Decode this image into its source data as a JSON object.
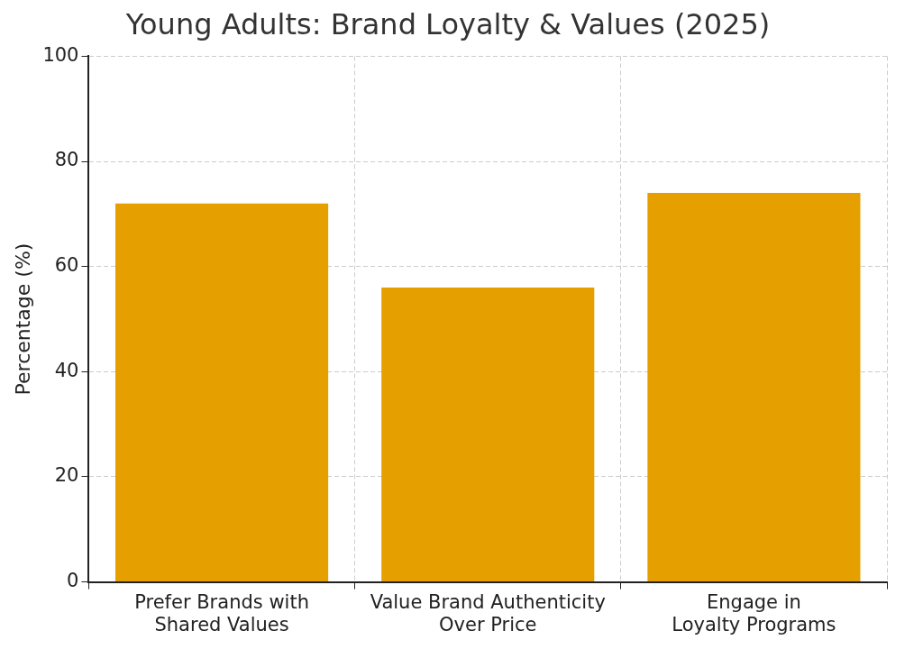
{
  "chart_data": {
    "type": "bar",
    "title": "Young Adults: Brand Loyalty & Values (2025)",
    "ylabel": "Percentage (%)",
    "categories": [
      "Prefer Brands with Shared Values",
      "Value Brand Authenticity Over Price",
      "Engage in Loyalty Programs"
    ],
    "values": [
      72,
      56,
      74
    ],
    "color": "#e5a000",
    "ylim": [
      0,
      100
    ],
    "yticks": [
      0,
      20,
      40,
      60,
      80,
      100
    ],
    "grid": true,
    "legend": false
  }
}
